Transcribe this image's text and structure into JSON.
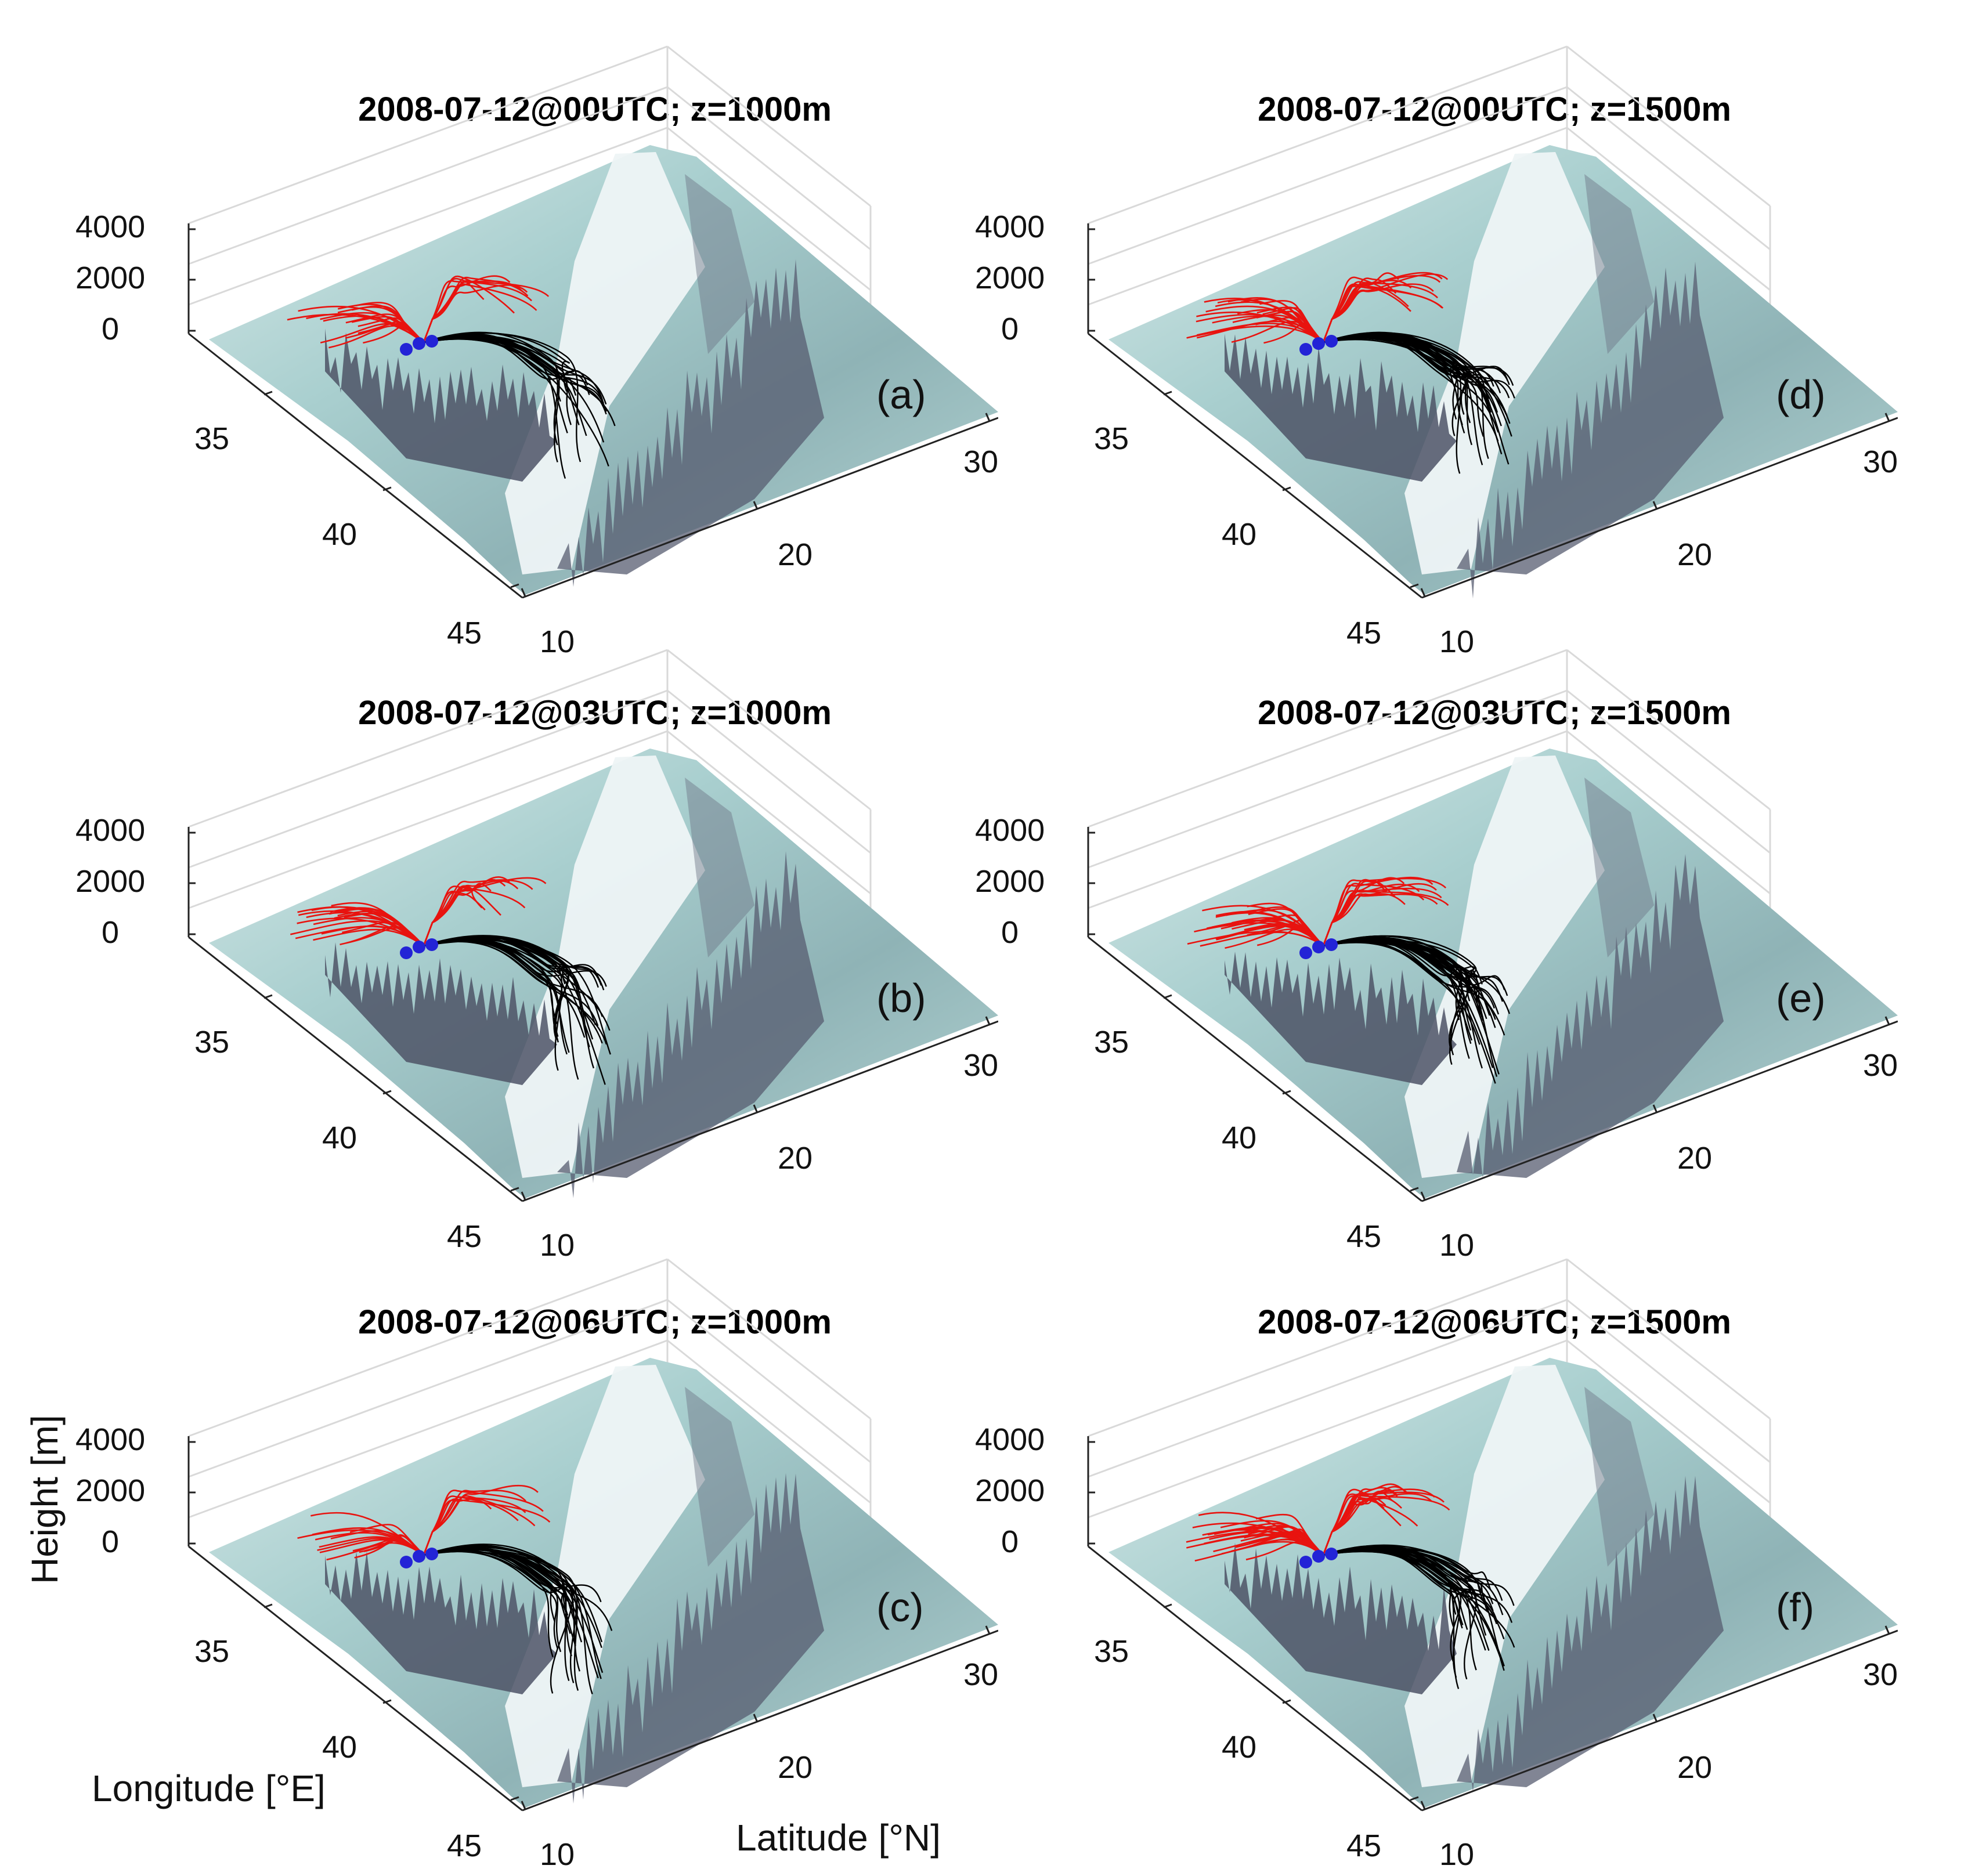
{
  "figure": {
    "ylabel": "Height [m]",
    "xlabel": "Longitude [°E]",
    "zlabel": "Latitude [°N]"
  },
  "chart_data": [
    {
      "type": "surface-trajectories",
      "panel": "(a)",
      "title": "2008-07-12@00UTC; z=1000m",
      "height_ticks": [
        "4000",
        "2000",
        "0"
      ],
      "longitude_ticks": [
        "35",
        "40",
        "45"
      ],
      "latitude_ticks": [
        "10",
        "20",
        "30"
      ],
      "height_range": [
        0,
        4000
      ],
      "longitude_range": [
        32,
        45
      ],
      "latitude_range": [
        10,
        32
      ],
      "red_count": 26,
      "black_count": 22,
      "red_colour": "#e8130f",
      "black_colour": "#000000",
      "source_colour": "#2323d6"
    },
    {
      "type": "surface-trajectories",
      "panel": "(b)",
      "title": "2008-07-12@03UTC; z=1000m",
      "height_ticks": [
        "4000",
        "2000",
        "0"
      ],
      "longitude_ticks": [
        "35",
        "40",
        "45"
      ],
      "latitude_ticks": [
        "10",
        "20",
        "30"
      ],
      "height_range": [
        0,
        4000
      ],
      "longitude_range": [
        32,
        45
      ],
      "latitude_range": [
        10,
        32
      ],
      "red_count": 30,
      "black_count": 28,
      "red_colour": "#e8130f",
      "black_colour": "#000000",
      "source_colour": "#2323d6"
    },
    {
      "type": "surface-trajectories",
      "panel": "(c)",
      "title": "2008-07-12@06UTC; z=1000m",
      "height_ticks": [
        "4000",
        "2000",
        "0"
      ],
      "longitude_ticks": [
        "35",
        "40",
        "45"
      ],
      "latitude_ticks": [
        "10",
        "20",
        "30"
      ],
      "height_range": [
        0,
        4000
      ],
      "longitude_range": [
        32,
        45
      ],
      "latitude_range": [
        10,
        32
      ],
      "red_count": 22,
      "black_count": 26,
      "red_colour": "#e8130f",
      "black_colour": "#000000",
      "source_colour": "#2323d6"
    },
    {
      "type": "surface-trajectories",
      "panel": "(d)",
      "title": "2008-07-12@00UTC; z=1500m",
      "height_ticks": [
        "4000",
        "2000",
        "0"
      ],
      "longitude_ticks": [
        "35",
        "40",
        "45"
      ],
      "latitude_ticks": [
        "10",
        "20",
        "30"
      ],
      "height_range": [
        0,
        4000
      ],
      "longitude_range": [
        32,
        45
      ],
      "latitude_range": [
        10,
        32
      ],
      "red_count": 34,
      "black_count": 32,
      "red_colour": "#e8130f",
      "black_colour": "#000000",
      "source_colour": "#2323d6"
    },
    {
      "type": "surface-trajectories",
      "panel": "(e)",
      "title": "2008-07-12@03UTC; z=1500m",
      "height_ticks": [
        "4000",
        "2000",
        "0"
      ],
      "longitude_ticks": [
        "35",
        "40",
        "45"
      ],
      "latitude_ticks": [
        "10",
        "20",
        "30"
      ],
      "height_range": [
        0,
        4000
      ],
      "longitude_range": [
        32,
        45
      ],
      "latitude_range": [
        10,
        32
      ],
      "red_count": 36,
      "black_count": 34,
      "red_colour": "#e8130f",
      "black_colour": "#000000",
      "source_colour": "#2323d6"
    },
    {
      "type": "surface-trajectories",
      "panel": "(f)",
      "title": "2008-07-12@06UTC; z=1500m",
      "height_ticks": [
        "4000",
        "2000",
        "0"
      ],
      "longitude_ticks": [
        "35",
        "40",
        "45"
      ],
      "latitude_ticks": [
        "10",
        "20",
        "30"
      ],
      "height_range": [
        0,
        4000
      ],
      "longitude_range": [
        32,
        45
      ],
      "latitude_range": [
        10,
        32
      ],
      "red_count": 40,
      "black_count": 30,
      "red_colour": "#e8130f",
      "black_colour": "#000000",
      "source_colour": "#2323d6"
    }
  ]
}
